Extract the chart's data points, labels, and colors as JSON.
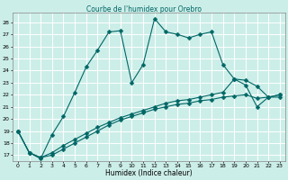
{
  "title": "Courbe de l'humidex pour Orebro",
  "xlabel": "Humidex (Indice chaleur)",
  "bg_color": "#cceee8",
  "grid_color": "#ffffff",
  "line_color": "#006666",
  "xlim": [
    -0.5,
    23.5
  ],
  "ylim": [
    16.5,
    28.8
  ],
  "yticks": [
    17,
    18,
    19,
    20,
    21,
    22,
    23,
    24,
    25,
    26,
    27,
    28
  ],
  "xticks": [
    0,
    1,
    2,
    3,
    4,
    5,
    6,
    7,
    8,
    9,
    10,
    11,
    12,
    13,
    14,
    15,
    16,
    17,
    18,
    19,
    20,
    21,
    22,
    23
  ],
  "series1_x": [
    0,
    1,
    2,
    3,
    4,
    5,
    6,
    7,
    8,
    9,
    10,
    11,
    12,
    13,
    14,
    15,
    16,
    17,
    18,
    19,
    20,
    21,
    22,
    23
  ],
  "series1_y": [
    19.0,
    17.2,
    16.7,
    18.7,
    20.2,
    22.2,
    24.3,
    25.7,
    27.2,
    27.3,
    23.0,
    24.5,
    28.3,
    27.2,
    27.0,
    26.7,
    27.0,
    27.2,
    24.5,
    23.3,
    22.8,
    21.0,
    21.8,
    21.8
  ],
  "series2_x": [
    0,
    1,
    2,
    3,
    4,
    5,
    6,
    7,
    8,
    9,
    10,
    11,
    12,
    13,
    14,
    15,
    16,
    17,
    18,
    19,
    20,
    21,
    22,
    23
  ],
  "series2_y": [
    19.0,
    17.2,
    16.8,
    17.2,
    17.8,
    18.3,
    18.8,
    19.3,
    19.7,
    20.1,
    20.4,
    20.7,
    21.0,
    21.3,
    21.5,
    21.6,
    21.8,
    22.0,
    22.2,
    23.3,
    23.2,
    22.7,
    21.8,
    22.0
  ],
  "series3_x": [
    0,
    1,
    2,
    3,
    4,
    5,
    6,
    7,
    8,
    9,
    10,
    11,
    12,
    13,
    14,
    15,
    16,
    17,
    18,
    19,
    20,
    21,
    22,
    23
  ],
  "series3_y": [
    19.0,
    17.2,
    16.8,
    17.0,
    17.5,
    18.0,
    18.5,
    19.0,
    19.5,
    19.9,
    20.2,
    20.5,
    20.8,
    21.0,
    21.2,
    21.3,
    21.5,
    21.6,
    21.8,
    21.9,
    22.0,
    21.7,
    21.8,
    22.0
  ]
}
